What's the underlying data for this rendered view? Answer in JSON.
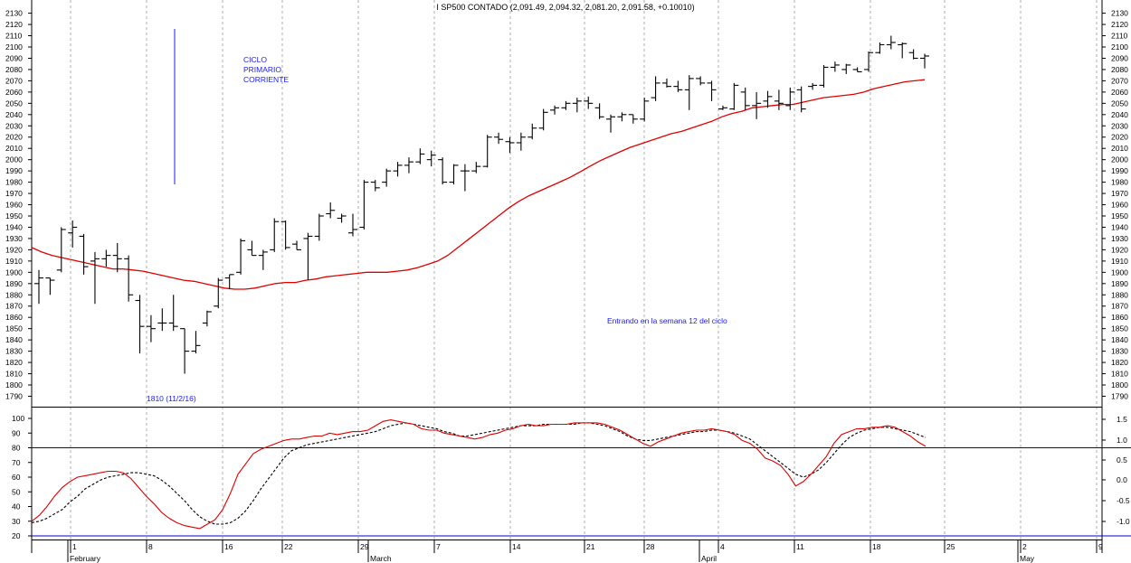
{
  "chart_data": [
    {
      "type": "bar",
      "subtype": "ohlc",
      "title": "I SP500 CONTADO (2,091.49, 2,094.32, 2,081.20, 2,091.58, +0.10010)",
      "ylim": [
        1780,
        2135
      ],
      "y_ticks": [
        "2130",
        "2120",
        "2110",
        "2100",
        "2090",
        "2080",
        "2070",
        "2060",
        "2050",
        "2040",
        "2030",
        "2020",
        "2010",
        "2000",
        "1990",
        "1980",
        "1970",
        "1960",
        "1950",
        "1940",
        "1930",
        "1920",
        "1910",
        "1900",
        "1890",
        "1880",
        "1870",
        "1860",
        "1850",
        "1840",
        "1830",
        "1820",
        "1810",
        "1800",
        "1790"
      ],
      "grid": "vertical-dashed",
      "colors": {
        "price": "#000000",
        "moving_average": "#e00000",
        "annotation": "#1a1aff"
      },
      "annotations": {
        "cycle_label": [
          "CICLO",
          "PRIMARIO",
          "CORRIENTE"
        ],
        "cycle_note": "Entrando en la semana 12 del ciclo",
        "low_label": "1810 (11/2/16)"
      },
      "bars": [
        {
          "o": 1890,
          "h": 1902,
          "l": 1872,
          "c": 1895
        },
        {
          "o": 1895,
          "h": 1895,
          "l": 1880,
          "c": 1893
        },
        {
          "o": 1902,
          "h": 1940,
          "l": 1900,
          "c": 1938
        },
        {
          "o": 1935,
          "h": 1946,
          "l": 1922,
          "c": 1940
        },
        {
          "o": 1932,
          "h": 1934,
          "l": 1898,
          "c": 1905
        },
        {
          "o": 1910,
          "h": 1918,
          "l": 1872,
          "c": 1912
        },
        {
          "o": 1912,
          "h": 1920,
          "l": 1905,
          "c": 1915
        },
        {
          "o": 1915,
          "h": 1926,
          "l": 1900,
          "c": 1912
        },
        {
          "o": 1912,
          "h": 1915,
          "l": 1874,
          "c": 1880
        },
        {
          "o": 1875,
          "h": 1880,
          "l": 1828,
          "c": 1852
        },
        {
          "o": 1852,
          "h": 1862,
          "l": 1838,
          "c": 1850
        },
        {
          "o": 1855,
          "h": 1868,
          "l": 1848,
          "c": 1855
        },
        {
          "o": 1855,
          "h": 1880,
          "l": 1848,
          "c": 1852
        },
        {
          "o": 1850,
          "h": 1850,
          "l": 1810,
          "c": 1830
        },
        {
          "o": 1830,
          "h": 1848,
          "l": 1828,
          "c": 1835
        },
        {
          "o": 1855,
          "h": 1866,
          "l": 1852,
          "c": 1865
        },
        {
          "o": 1870,
          "h": 1895,
          "l": 1868,
          "c": 1893
        },
        {
          "o": 1895,
          "h": 1898,
          "l": 1885,
          "c": 1898
        },
        {
          "o": 1900,
          "h": 1930,
          "l": 1898,
          "c": 1928
        },
        {
          "o": 1920,
          "h": 1928,
          "l": 1915,
          "c": 1915
        },
        {
          "o": 1915,
          "h": 1920,
          "l": 1902,
          "c": 1918
        },
        {
          "o": 1920,
          "h": 1948,
          "l": 1918,
          "c": 1945
        },
        {
          "o": 1945,
          "h": 1946,
          "l": 1920,
          "c": 1922
        },
        {
          "o": 1925,
          "h": 1928,
          "l": 1920,
          "c": 1920
        },
        {
          "o": 1930,
          "h": 1935,
          "l": 1893,
          "c": 1932
        },
        {
          "o": 1932,
          "h": 1952,
          "l": 1928,
          "c": 1950
        },
        {
          "o": 1952,
          "h": 1962,
          "l": 1948,
          "c": 1955
        },
        {
          "o": 1948,
          "h": 1952,
          "l": 1944,
          "c": 1950
        },
        {
          "o": 1935,
          "h": 1952,
          "l": 1932,
          "c": 1938
        },
        {
          "o": 1940,
          "h": 1982,
          "l": 1938,
          "c": 1980
        },
        {
          "o": 1980,
          "h": 1982,
          "l": 1972,
          "c": 1975
        },
        {
          "o": 1980,
          "h": 1992,
          "l": 1976,
          "c": 1990
        },
        {
          "o": 1990,
          "h": 1998,
          "l": 1985,
          "c": 1995
        },
        {
          "o": 1995,
          "h": 2002,
          "l": 1988,
          "c": 1998
        },
        {
          "o": 1998,
          "h": 2010,
          "l": 1996,
          "c": 2005
        },
        {
          "o": 2000,
          "h": 2008,
          "l": 1994,
          "c": 2004
        },
        {
          "o": 2000,
          "h": 2002,
          "l": 1978,
          "c": 1980
        },
        {
          "o": 1980,
          "h": 1996,
          "l": 1978,
          "c": 1995
        },
        {
          "o": 1990,
          "h": 1996,
          "l": 1972,
          "c": 1990
        },
        {
          "o": 1990,
          "h": 1998,
          "l": 1988,
          "c": 1994
        },
        {
          "o": 1994,
          "h": 2022,
          "l": 1993,
          "c": 2020
        },
        {
          "o": 2020,
          "h": 2024,
          "l": 2014,
          "c": 2018
        },
        {
          "o": 2016,
          "h": 2020,
          "l": 2006,
          "c": 2015
        },
        {
          "o": 2015,
          "h": 2024,
          "l": 2008,
          "c": 2020
        },
        {
          "o": 2020,
          "h": 2032,
          "l": 2018,
          "c": 2028
        },
        {
          "o": 2028,
          "h": 2045,
          "l": 2026,
          "c": 2042
        },
        {
          "o": 2044,
          "h": 2048,
          "l": 2040,
          "c": 2046
        },
        {
          "o": 2046,
          "h": 2052,
          "l": 2044,
          "c": 2050
        },
        {
          "o": 2050,
          "h": 2055,
          "l": 2042,
          "c": 2052
        },
        {
          "o": 2052,
          "h": 2056,
          "l": 2045,
          "c": 2050
        },
        {
          "o": 2046,
          "h": 2050,
          "l": 2036,
          "c": 2038
        },
        {
          "o": 2036,
          "h": 2040,
          "l": 2024,
          "c": 2038
        },
        {
          "o": 2038,
          "h": 2042,
          "l": 2034,
          "c": 2040
        },
        {
          "o": 2040,
          "h": 2040,
          "l": 2032,
          "c": 2036
        },
        {
          "o": 2036,
          "h": 2055,
          "l": 2034,
          "c": 2052
        },
        {
          "o": 2055,
          "h": 2074,
          "l": 2052,
          "c": 2068
        },
        {
          "o": 2068,
          "h": 2072,
          "l": 2064,
          "c": 2065
        },
        {
          "o": 2065,
          "h": 2070,
          "l": 2060,
          "c": 2062
        },
        {
          "o": 2062,
          "h": 2075,
          "l": 2044,
          "c": 2072
        },
        {
          "o": 2072,
          "h": 2074,
          "l": 2066,
          "c": 2068
        },
        {
          "o": 2068,
          "h": 2070,
          "l": 2052,
          "c": 2062
        },
        {
          "o": 2045,
          "h": 2048,
          "l": 2044,
          "c": 2046
        },
        {
          "o": 2045,
          "h": 2068,
          "l": 2044,
          "c": 2066
        },
        {
          "o": 2060,
          "h": 2064,
          "l": 2044,
          "c": 2048
        },
        {
          "o": 2048,
          "h": 2060,
          "l": 2036,
          "c": 2050
        },
        {
          "o": 2052,
          "h": 2061,
          "l": 2046,
          "c": 2056
        },
        {
          "o": 2052,
          "h": 2062,
          "l": 2044,
          "c": 2050
        },
        {
          "o": 2048,
          "h": 2064,
          "l": 2044,
          "c": 2060
        },
        {
          "o": 2062,
          "h": 2065,
          "l": 2042,
          "c": 2045
        },
        {
          "o": 2065,
          "h": 2068,
          "l": 2062,
          "c": 2066
        },
        {
          "o": 2066,
          "h": 2084,
          "l": 2064,
          "c": 2082
        },
        {
          "o": 2082,
          "h": 2087,
          "l": 2078,
          "c": 2084
        },
        {
          "o": 2080,
          "h": 2085,
          "l": 2076,
          "c": 2084
        },
        {
          "o": 2080,
          "h": 2082,
          "l": 2078,
          "c": 2078
        },
        {
          "o": 2080,
          "h": 2096,
          "l": 2078,
          "c": 2095
        },
        {
          "o": 2095,
          "h": 2104,
          "l": 2094,
          "c": 2102
        },
        {
          "o": 2102,
          "h": 2110,
          "l": 2098,
          "c": 2104
        },
        {
          "o": 2102,
          "h": 2104,
          "l": 2090,
          "c": 2103
        },
        {
          "o": 2095,
          "h": 2098,
          "l": 2089,
          "c": 2090
        },
        {
          "o": 2090,
          "h": 2094,
          "l": 2081,
          "c": 2092
        }
      ],
      "moving_average": [
        1922,
        1918,
        1915,
        1913,
        1911,
        1909,
        1907,
        1905,
        1903,
        1903,
        1902,
        1901,
        1899,
        1897,
        1895,
        1893,
        1892,
        1890,
        1888,
        1886,
        1885,
        1885,
        1886,
        1888,
        1890,
        1891,
        1891,
        1893,
        1894,
        1896,
        1897,
        1898,
        1899,
        1900,
        1900,
        1900,
        1901,
        1902,
        1904,
        1907,
        1910,
        1915,
        1922,
        1929,
        1936,
        1943,
        1950,
        1957,
        1963,
        1968,
        1972,
        1976,
        1980,
        1984,
        1989,
        1994,
        1999,
        2003,
        2007,
        2011,
        2014,
        2017,
        2020,
        2023,
        2025,
        2028,
        2031,
        2034,
        2038,
        2041,
        2043,
        2046,
        2047,
        2048,
        2049,
        2049,
        2051,
        2053,
        2055,
        2056,
        2057,
        2058,
        2060,
        2063,
        2065,
        2067,
        2069,
        2070,
        2071
      ]
    },
    {
      "type": "line",
      "ylim": [
        20,
        107
      ],
      "y_ticks": [
        "100",
        "90",
        "80",
        "70",
        "60",
        "50",
        "40",
        "30",
        "20"
      ],
      "y_ticks_right": [
        "1.5",
        "1.0",
        "0.5",
        "0.0",
        "-0.5",
        "-1.0"
      ],
      "reference_levels": [
        80,
        20
      ],
      "colors": {
        "fast": "#e00000",
        "slow": "#000000",
        "reference": "#0000cc"
      },
      "fast": [
        30,
        34,
        40,
        47,
        53,
        57,
        60,
        61,
        62,
        63,
        64,
        64,
        63,
        59,
        53,
        47,
        42,
        36,
        32,
        29,
        27,
        26,
        25,
        28,
        31,
        38,
        49,
        62,
        69,
        76,
        79,
        81,
        83,
        85,
        86,
        86,
        87,
        88,
        88,
        90,
        89,
        90,
        91,
        91,
        92,
        95,
        98,
        99,
        98,
        97,
        96,
        93,
        92,
        92,
        90,
        89,
        88,
        87,
        86,
        87,
        89,
        90,
        92,
        93,
        95,
        96,
        95,
        95,
        96,
        96,
        96,
        97,
        97,
        97,
        97,
        96,
        94,
        92,
        89,
        86,
        83,
        81,
        84,
        86,
        88,
        90,
        91,
        92,
        92,
        93,
        92,
        91,
        89,
        85,
        83,
        79,
        73,
        71,
        68,
        62,
        54,
        57,
        62,
        68,
        74,
        83,
        89,
        91,
        93,
        93,
        94,
        94,
        95,
        94,
        91,
        88,
        84,
        81
      ],
      "slow": [
        29,
        30,
        32,
        35,
        38,
        43,
        47,
        52,
        55,
        58,
        60,
        61,
        62,
        63,
        63,
        62,
        61,
        58,
        54,
        49,
        44,
        38,
        33,
        30,
        28,
        28,
        29,
        32,
        37,
        44,
        52,
        59,
        66,
        73,
        78,
        80,
        82,
        83,
        84,
        85,
        86,
        87,
        88,
        89,
        90,
        91,
        93,
        95,
        96,
        97,
        96,
        95,
        94,
        93,
        91,
        90,
        88,
        88,
        89,
        90,
        91,
        92,
        93,
        94,
        95,
        95,
        95,
        96,
        96,
        96,
        96,
        96,
        97,
        97,
        96,
        95,
        93,
        91,
        88,
        86,
        85,
        85,
        86,
        87,
        88,
        89,
        90,
        91,
        91,
        92,
        92,
        91,
        90,
        88,
        86,
        82,
        78,
        74,
        70,
        66,
        62,
        60,
        62,
        65,
        70,
        76,
        82,
        87,
        90,
        92,
        93,
        94,
        94,
        93,
        92,
        91,
        89,
        87
      ]
    }
  ],
  "x_axis": {
    "day_labels": [
      "1",
      "8",
      "16",
      "22",
      "29",
      "7",
      "14",
      "21",
      "28",
      "4",
      "11",
      "18",
      "25",
      "2",
      "9"
    ],
    "month_labels": [
      "February",
      "March",
      "April",
      "May"
    ]
  }
}
